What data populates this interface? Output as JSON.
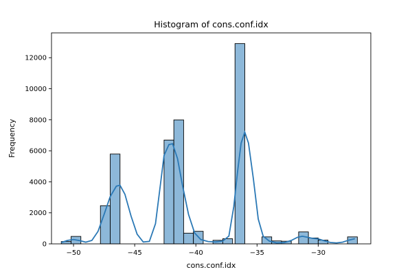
{
  "chart_data": {
    "type": "bar",
    "title": "Histogram of cons.conf.idx",
    "xlabel": "cons.conf.idx",
    "ylabel": "Frequency",
    "xlim": [
      -51.8,
      -25.7
    ],
    "ylim": [
      0,
      13600
    ],
    "xticks": [
      -50,
      -45,
      -40,
      -35,
      -30
    ],
    "yticks": [
      0,
      2000,
      4000,
      6000,
      8000,
      10000,
      12000
    ],
    "grid": false,
    "bar_color": "#8db8d9",
    "bar_edge_color": "#000000",
    "kde_color": "#2a78b5",
    "bins": [
      {
        "x0": -51.0,
        "x1": -50.2,
        "count": 150
      },
      {
        "x0": -50.2,
        "x1": -49.4,
        "count": 480
      },
      {
        "x0": -47.8,
        "x1": -47.0,
        "count": 2460
      },
      {
        "x0": -47.0,
        "x1": -46.2,
        "count": 5790
      },
      {
        "x0": -42.6,
        "x1": -41.8,
        "count": 6690
      },
      {
        "x0": -41.8,
        "x1": -41.0,
        "count": 7990
      },
      {
        "x0": -41.0,
        "x1": -40.2,
        "count": 690
      },
      {
        "x0": -40.2,
        "x1": -39.4,
        "count": 810
      },
      {
        "x0": -38.6,
        "x1": -37.8,
        "count": 230
      },
      {
        "x0": -37.8,
        "x1": -37.0,
        "count": 330
      },
      {
        "x0": -36.8,
        "x1": -36.0,
        "count": 12910
      },
      {
        "x0": -34.6,
        "x1": -33.8,
        "count": 450
      },
      {
        "x0": -33.8,
        "x1": -33.0,
        "count": 190
      },
      {
        "x0": -33.0,
        "x1": -32.2,
        "count": 170
      },
      {
        "x0": -31.6,
        "x1": -30.8,
        "count": 770
      },
      {
        "x0": -30.8,
        "x1": -30.0,
        "count": 380
      },
      {
        "x0": -30.0,
        "x1": -29.2,
        "count": 240
      },
      {
        "x0": -27.6,
        "x1": -26.8,
        "count": 450
      }
    ],
    "kde": {
      "x": [
        -51.0,
        -50.5,
        -50.0,
        -49.5,
        -49.0,
        -48.5,
        -48.0,
        -47.5,
        -47.0,
        -46.5,
        -46.2,
        -45.8,
        -45.3,
        -44.8,
        -44.3,
        -43.8,
        -43.3,
        -42.9,
        -42.6,
        -42.2,
        -41.9,
        -41.5,
        -41.1,
        -40.6,
        -40.1,
        -39.6,
        -39.0,
        -38.4,
        -37.8,
        -37.3,
        -36.9,
        -36.6,
        -36.3,
        -36.0,
        -35.7,
        -35.3,
        -34.9,
        -34.5,
        -34.0,
        -33.4,
        -32.8,
        -32.2,
        -31.7,
        -31.3,
        -30.9,
        -30.5,
        -30.0,
        -29.5,
        -29.0,
        -28.5,
        -28.0,
        -27.5,
        -27.0
      ],
      "y": [
        90,
        220,
        280,
        210,
        110,
        220,
        800,
        1900,
        3050,
        3720,
        3780,
        3200,
        1800,
        620,
        120,
        160,
        1300,
        3800,
        5700,
        6400,
        6450,
        5500,
        3800,
        1900,
        700,
        280,
        150,
        120,
        180,
        500,
        2400,
        4600,
        6500,
        7200,
        6500,
        4200,
        1600,
        500,
        180,
        60,
        80,
        220,
        420,
        490,
        430,
        360,
        320,
        200,
        90,
        60,
        110,
        240,
        330
      ]
    }
  }
}
